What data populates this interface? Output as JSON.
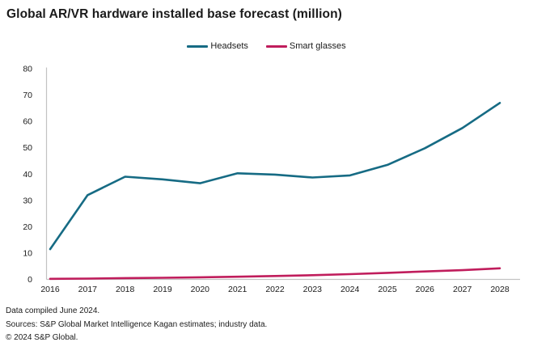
{
  "title": "Global AR/VR hardware installed base forecast (million)",
  "footer": {
    "lines": [
      "Data compiled June 2024.",
      "Sources: S&P Global Market Intelligence Kagan estimates; industry data.",
      "© 2024 S&P Global."
    ]
  },
  "colors": {
    "headsets": "#166B84",
    "smart_glasses": "#C01D5C",
    "axis_line": "#c2c2c2",
    "tick_text": "#1a1a1a"
  },
  "chart_data": {
    "type": "line",
    "title": "Global AR/VR hardware installed base forecast (million)",
    "x": [
      2016,
      2017,
      2018,
      2019,
      2020,
      2021,
      2022,
      2023,
      2024,
      2025,
      2026,
      2027,
      2028
    ],
    "series": [
      {
        "name": "Headsets",
        "color": "#166B84",
        "values": [
          11.5,
          32,
          39,
          38,
          36.5,
          40.3,
          39.8,
          38.7,
          39.5,
          43.5,
          49.8,
          57.5,
          67
        ]
      },
      {
        "name": "Smart glasses",
        "color": "#C01D5C",
        "values": [
          0.2,
          0.3,
          0.5,
          0.6,
          0.8,
          1.0,
          1.3,
          1.6,
          2.0,
          2.5,
          3.0,
          3.5,
          4.2
        ]
      }
    ],
    "xlabel": "",
    "ylabel": "",
    "ylim": [
      0,
      80
    ],
    "ytick_step": 10,
    "grid": false,
    "legend_position": "top-center"
  }
}
